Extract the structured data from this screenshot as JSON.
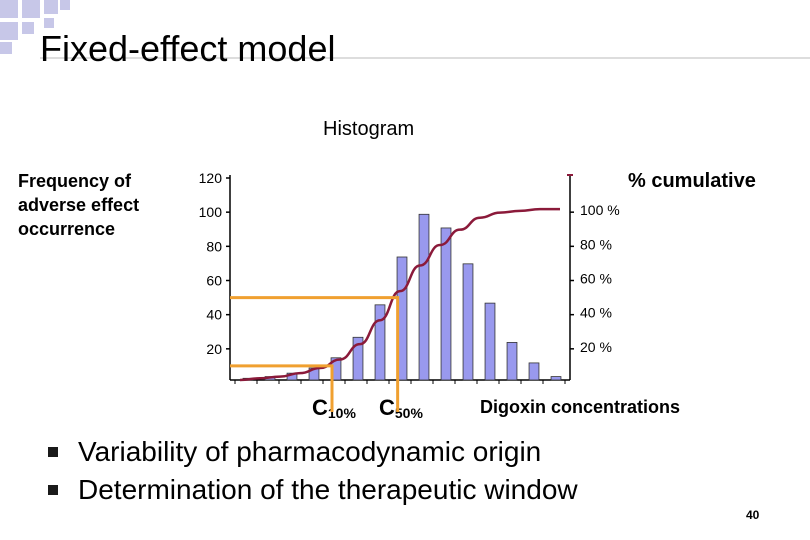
{
  "slide": {
    "title": "Fixed-effect model",
    "page_number": "40",
    "bullets": [
      "Variability of pharmacodynamic origin",
      "Determination of the therapeutic window"
    ]
  },
  "colors": {
    "bar_fill": "#9999ee",
    "curve": "#8b1a3a",
    "highlight": "#f0a030",
    "deco_squares": "#c7c7e8"
  },
  "chart_data": {
    "type": "bar",
    "title": "Histogram",
    "ylabel": "Frequency of adverse effect occurrence",
    "y2label": "% cumulative",
    "xlabel": "Digoxin concentrations",
    "ylim": [
      0,
      120
    ],
    "y_ticks": [
      "20",
      "40",
      "60",
      "80",
      "100",
      "120"
    ],
    "y2lim": [
      0,
      120
    ],
    "y2_ticks": [
      "20 %",
      "40 %",
      "60 %",
      "80 %",
      "100 %"
    ],
    "values": [
      1,
      2,
      4,
      7,
      13,
      25,
      44,
      72,
      97,
      89,
      68,
      45,
      22,
      10,
      2
    ],
    "cumulative_percent": [
      0,
      1,
      2,
      4,
      7,
      12,
      21,
      35,
      52,
      67,
      79,
      88,
      95,
      98,
      99,
      100,
      100
    ],
    "markers": [
      {
        "label": "C",
        "sub": "10%",
        "at_percent": 10
      },
      {
        "label": "C",
        "sub": "50%",
        "at_percent": 50
      }
    ]
  }
}
